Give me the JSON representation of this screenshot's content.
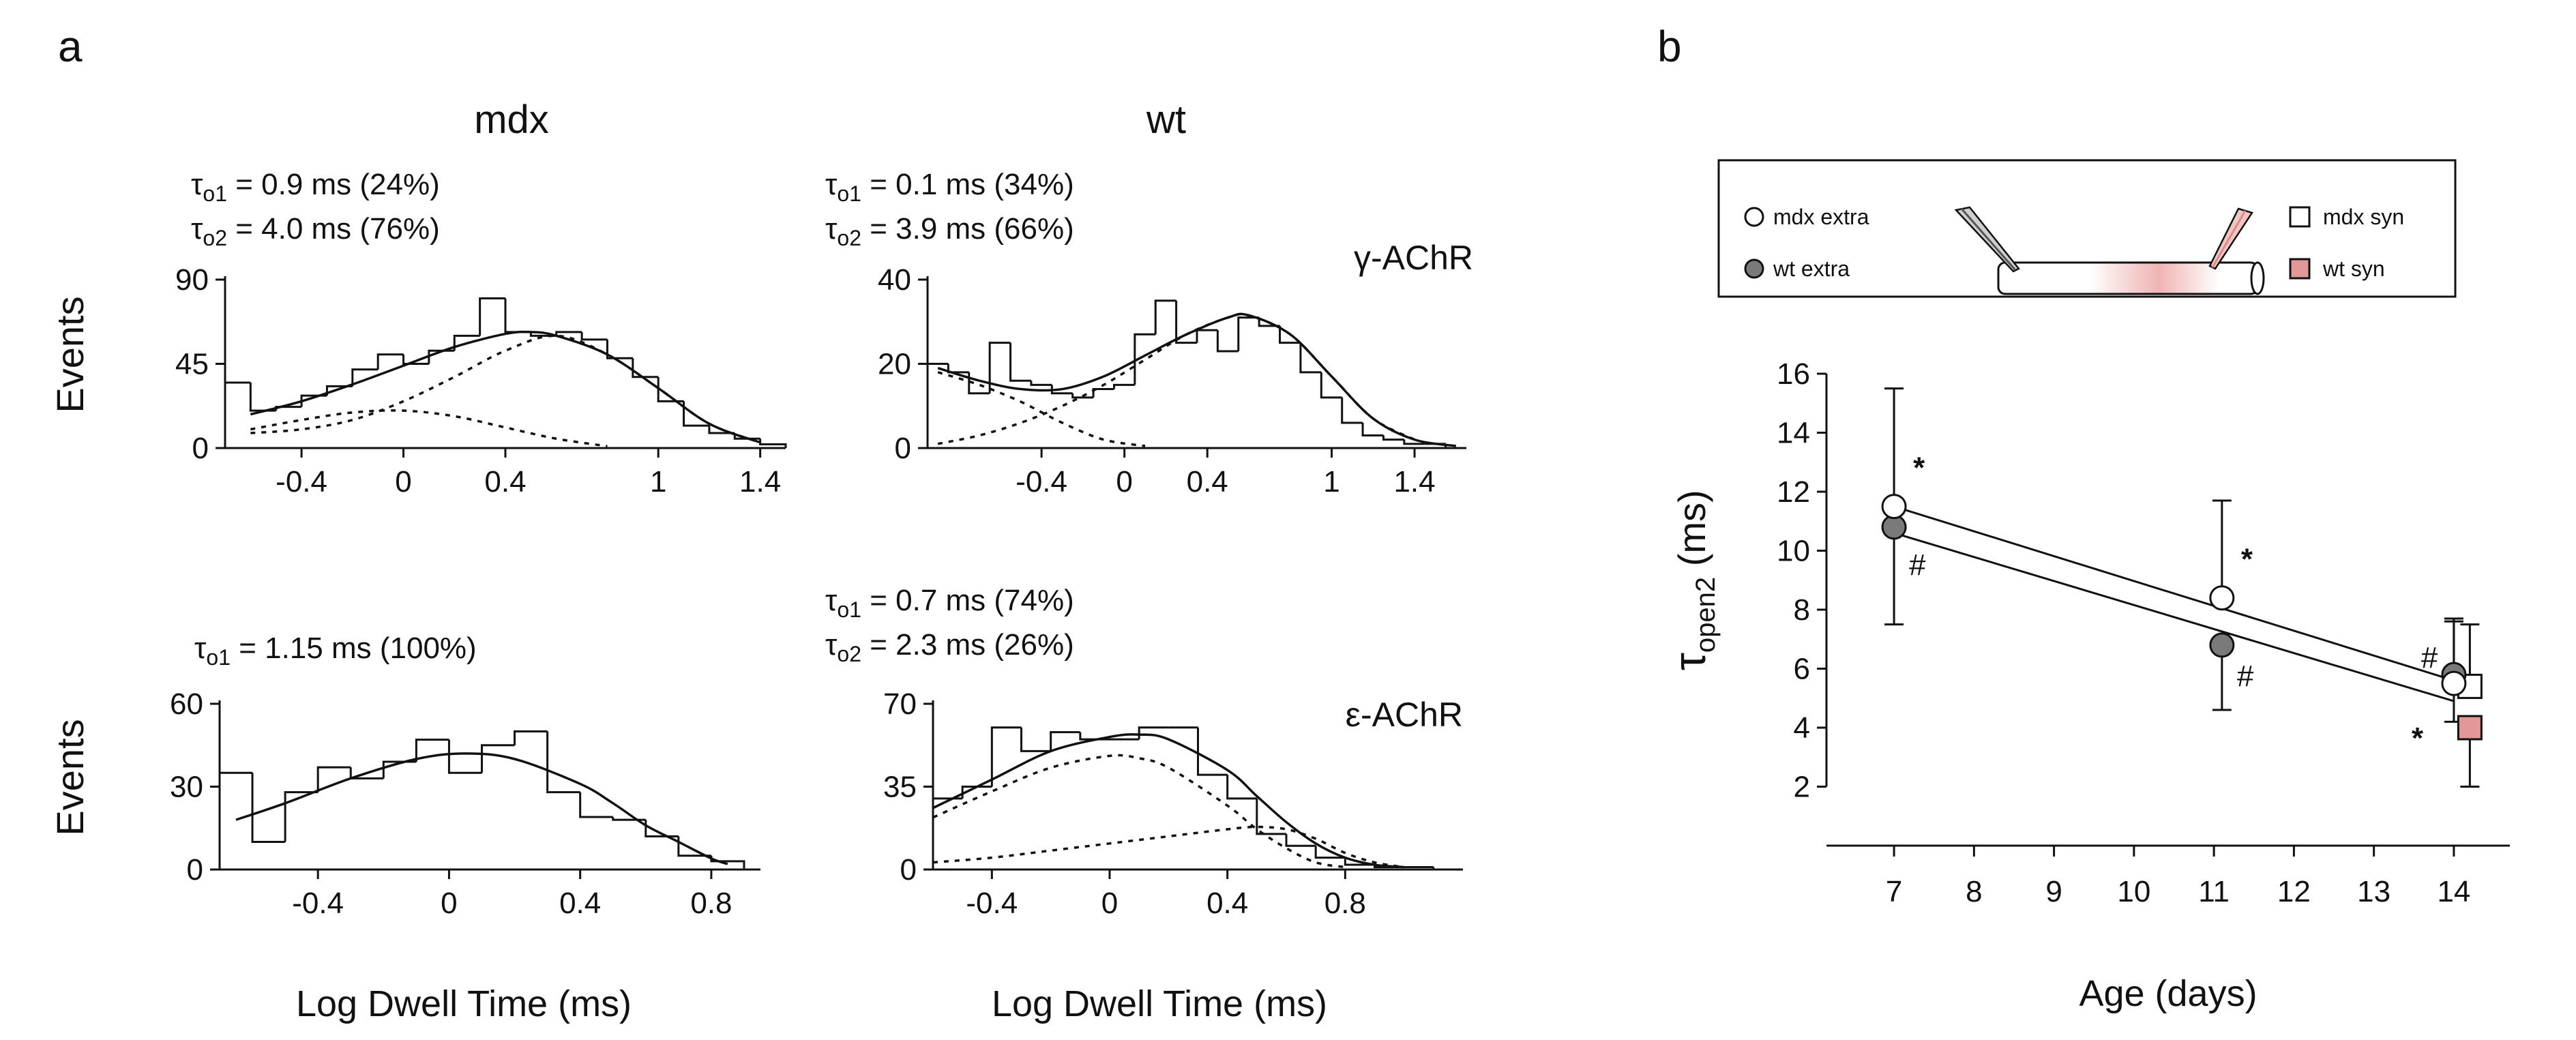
{
  "panel_labels": {
    "a": "a",
    "b": "b"
  },
  "column_titles": {
    "mdx": "mdx",
    "wt": "wt"
  },
  "receptor_labels": {
    "gamma": "γ-AChR",
    "epsilon": "ε-AChR"
  },
  "shared_labels": {
    "events": "Events",
    "log_dwell": "Log Dwell Time (ms)"
  },
  "chart_data": [
    {
      "id": "mdx-gamma",
      "type": "bar",
      "title": "mdx γ-AChR",
      "tau_lines": [
        {
          "sym": "τ",
          "sub": "o1",
          "text": " = 0.9 ms (24%)"
        },
        {
          "sym": "τ",
          "sub": "o2",
          "text": " = 4.0 ms (76%)"
        }
      ],
      "xlabel": "Log Dwell Time (ms)",
      "ylabel": "Events",
      "xlim": [
        -0.7,
        1.5
      ],
      "ylim": [
        0,
        90
      ],
      "xticks": [
        -0.4,
        0,
        0.4,
        1,
        1.4
      ],
      "xtick_labels": [
        "-0.4",
        "0",
        "0.4",
        "1",
        "1.4"
      ],
      "yticks": [
        0,
        45,
        90
      ],
      "ytick_labels": [
        "0",
        "45",
        "90"
      ],
      "bin_edges": [
        -0.7,
        -0.6,
        -0.5,
        -0.4,
        -0.3,
        -0.2,
        -0.1,
        0,
        0.1,
        0.2,
        0.3,
        0.4,
        0.5,
        0.6,
        0.7,
        0.8,
        0.9,
        1.0,
        1.1,
        1.2,
        1.3,
        1.4,
        1.5
      ],
      "counts": [
        35,
        20,
        22,
        28,
        33,
        42,
        50,
        45,
        52,
        60,
        80,
        62,
        60,
        62,
        58,
        48,
        38,
        25,
        12,
        8,
        5,
        2
      ],
      "fits": [
        {
          "name": "sum",
          "style": "solid",
          "points": [
            [
              -0.6,
              18
            ],
            [
              -0.4,
              25
            ],
            [
              -0.2,
              34
            ],
            [
              0,
              44
            ],
            [
              0.2,
              54
            ],
            [
              0.4,
              61
            ],
            [
              0.5,
              62
            ],
            [
              0.6,
              60
            ],
            [
              0.8,
              50
            ],
            [
              1,
              32
            ],
            [
              1.2,
              13
            ],
            [
              1.4,
              3
            ]
          ]
        },
        {
          "name": "component 1 (τo1)",
          "style": "dotted",
          "points": [
            [
              -0.6,
              10
            ],
            [
              -0.4,
              15
            ],
            [
              -0.2,
              19
            ],
            [
              0,
              20
            ],
            [
              0.2,
              17
            ],
            [
              0.4,
              11
            ],
            [
              0.6,
              5
            ],
            [
              0.8,
              1
            ]
          ]
        },
        {
          "name": "component 2 (τo2)",
          "style": "dotted",
          "points": [
            [
              -0.6,
              8
            ],
            [
              -0.4,
              10
            ],
            [
              -0.2,
              15
            ],
            [
              0,
              25
            ],
            [
              0.2,
              38
            ],
            [
              0.4,
              52
            ],
            [
              0.6,
              60
            ],
            [
              0.8,
              50
            ],
            [
              1,
              32
            ],
            [
              1.2,
              13
            ],
            [
              1.4,
              3
            ]
          ]
        }
      ]
    },
    {
      "id": "wt-gamma",
      "type": "bar",
      "title": "wt γ-AChR",
      "tau_lines": [
        {
          "sym": "τ",
          "sub": "o1",
          "text": " = 0.1 ms (34%)"
        },
        {
          "sym": "τ",
          "sub": "o2",
          "text": " = 3.9 ms (66%)"
        }
      ],
      "xlabel": "Log Dwell Time (ms)",
      "ylabel": "Events",
      "xlim": [
        -0.95,
        1.65
      ],
      "ylim": [
        0,
        40
      ],
      "xticks": [
        -0.4,
        0,
        0.4,
        1,
        1.4
      ],
      "xtick_labels": [
        "-0.4",
        "0",
        "0.4",
        "1",
        "1.4"
      ],
      "yticks": [
        0,
        20,
        40
      ],
      "ytick_labels": [
        "0",
        "20",
        "40"
      ],
      "bin_edges": [
        -0.95,
        -0.85,
        -0.75,
        -0.65,
        -0.55,
        -0.45,
        -0.35,
        -0.25,
        -0.15,
        -0.05,
        0.05,
        0.15,
        0.25,
        0.35,
        0.45,
        0.55,
        0.65,
        0.75,
        0.85,
        0.95,
        1.05,
        1.15,
        1.25,
        1.35,
        1.45,
        1.55,
        1.65
      ],
      "counts": [
        20,
        18,
        13,
        25,
        16,
        15,
        13,
        12,
        14,
        15,
        27,
        35,
        25,
        28,
        23,
        31,
        29,
        25,
        18,
        12,
        6,
        3,
        2,
        1,
        1,
        0
      ],
      "fits": [
        {
          "name": "sum",
          "style": "solid",
          "points": [
            [
              -0.9,
              19
            ],
            [
              -0.7,
              16
            ],
            [
              -0.5,
              14
            ],
            [
              -0.3,
              14
            ],
            [
              -0.1,
              17
            ],
            [
              0.1,
              22
            ],
            [
              0.3,
              27
            ],
            [
              0.5,
              31
            ],
            [
              0.6,
              31.5
            ],
            [
              0.8,
              27
            ],
            [
              1,
              17
            ],
            [
              1.2,
              7
            ],
            [
              1.4,
              2
            ],
            [
              1.6,
              0.5
            ]
          ]
        },
        {
          "name": "component 1 (τo1)",
          "style": "dotted",
          "points": [
            [
              -0.9,
              18
            ],
            [
              -0.7,
              15
            ],
            [
              -0.5,
              11
            ],
            [
              -0.3,
              6
            ],
            [
              -0.1,
              2
            ],
            [
              0.1,
              0.5
            ]
          ]
        },
        {
          "name": "component 2 (τo2)",
          "style": "dotted",
          "points": [
            [
              -0.9,
              1
            ],
            [
              -0.7,
              3
            ],
            [
              -0.5,
              6
            ],
            [
              -0.3,
              10
            ],
            [
              -0.1,
              15
            ],
            [
              0.1,
              21
            ],
            [
              0.3,
              27
            ],
            [
              0.5,
              31
            ],
            [
              0.6,
              31.5
            ],
            [
              0.8,
              27
            ],
            [
              1,
              17
            ],
            [
              1.2,
              7
            ],
            [
              1.4,
              2
            ]
          ]
        }
      ]
    },
    {
      "id": "mdx-epsilon",
      "type": "bar",
      "title": "mdx ε-AChR",
      "tau_lines": [
        {
          "sym": "τ",
          "sub": "o1",
          "text": " = 1.15 ms (100%)"
        }
      ],
      "xlabel": "Log Dwell Time (ms)",
      "ylabel": "Events",
      "xlim": [
        -0.7,
        0.95
      ],
      "ylim": [
        0,
        60
      ],
      "xticks": [
        -0.4,
        0,
        0.4,
        0.8
      ],
      "xtick_labels": [
        "-0.4",
        "0",
        "0.4",
        "0.8"
      ],
      "yticks": [
        0,
        30,
        60
      ],
      "ytick_labels": [
        "0",
        "30",
        "60"
      ],
      "bin_edges": [
        -0.7,
        -0.6,
        -0.5,
        -0.4,
        -0.3,
        -0.2,
        -0.1,
        0,
        0.1,
        0.2,
        0.3,
        0.4,
        0.5,
        0.6,
        0.7,
        0.8,
        0.9
      ],
      "counts": [
        35,
        10,
        28,
        37,
        33,
        39,
        47,
        35,
        45,
        50,
        28,
        19,
        18,
        12,
        5,
        3
      ],
      "fits": [
        {
          "name": "sum",
          "style": "solid",
          "points": [
            [
              -0.65,
              18
            ],
            [
              -0.5,
              24
            ],
            [
              -0.3,
              33
            ],
            [
              -0.1,
              40
            ],
            [
              0.05,
              42
            ],
            [
              0.2,
              40
            ],
            [
              0.4,
              31
            ],
            [
              0.5,
              24
            ],
            [
              0.6,
              16
            ],
            [
              0.7,
              10
            ],
            [
              0.8,
              4
            ],
            [
              0.85,
              2
            ]
          ]
        }
      ]
    },
    {
      "id": "wt-epsilon",
      "type": "bar",
      "title": "wt ε-AChR",
      "tau_lines": [
        {
          "sym": "τ",
          "sub": "o1",
          "text": " = 0.7 ms (74%)"
        },
        {
          "sym": "τ",
          "sub": "o2",
          "text": " = 2.3 ms (26%)"
        }
      ],
      "xlabel": "Log Dwell Time (ms)",
      "ylabel": "Events",
      "xlim": [
        -0.6,
        1.2
      ],
      "ylim": [
        0,
        70
      ],
      "xticks": [
        -0.4,
        0,
        0.4,
        0.8
      ],
      "xtick_labels": [
        "-0.4",
        "0",
        "0.4",
        "0.8"
      ],
      "yticks": [
        0,
        35,
        70
      ],
      "ytick_labels": [
        "0",
        "35",
        "70"
      ],
      "bin_edges": [
        -0.6,
        -0.5,
        -0.4,
        -0.3,
        -0.2,
        -0.1,
        0,
        0.1,
        0.2,
        0.3,
        0.4,
        0.5,
        0.6,
        0.7,
        0.8,
        0.9,
        1.0,
        1.1,
        1.2
      ],
      "counts": [
        30,
        35,
        60,
        50,
        58,
        55,
        55,
        60,
        60,
        40,
        30,
        15,
        10,
        5,
        2,
        1,
        1,
        0
      ],
      "fits": [
        {
          "name": "sum",
          "style": "solid",
          "points": [
            [
              -0.6,
              26
            ],
            [
              -0.4,
              38
            ],
            [
              -0.2,
              50
            ],
            [
              0,
              56
            ],
            [
              0.1,
              57
            ],
            [
              0.2,
              55
            ],
            [
              0.4,
              42
            ],
            [
              0.5,
              31
            ],
            [
              0.6,
              20
            ],
            [
              0.7,
              11
            ],
            [
              0.8,
              5
            ],
            [
              0.9,
              2
            ],
            [
              1,
              1
            ]
          ]
        },
        {
          "name": "component 1 (τo1)",
          "style": "dotted",
          "points": [
            [
              -0.6,
              22
            ],
            [
              -0.4,
              33
            ],
            [
              -0.2,
              43
            ],
            [
              0,
              48
            ],
            [
              0.1,
              47
            ],
            [
              0.2,
              43
            ],
            [
              0.4,
              27
            ],
            [
              0.5,
              17
            ],
            [
              0.6,
              9
            ],
            [
              0.7,
              3
            ],
            [
              0.8,
              1
            ]
          ]
        },
        {
          "name": "component 2 (τo2)",
          "style": "dotted",
          "points": [
            [
              -0.6,
              3
            ],
            [
              -0.4,
              5
            ],
            [
              -0.2,
              8
            ],
            [
              0,
              11
            ],
            [
              0.2,
              14
            ],
            [
              0.4,
              17
            ],
            [
              0.5,
              18
            ],
            [
              0.6,
              17
            ],
            [
              0.7,
              13
            ],
            [
              0.8,
              7
            ],
            [
              0.9,
              3
            ],
            [
              1,
              1
            ]
          ]
        }
      ]
    },
    {
      "id": "age-tau",
      "type": "scatter",
      "title": "",
      "xlabel": "Age (days)",
      "ylabel": {
        "sym": "τ",
        "sub": "open2",
        "unit": " (ms)"
      },
      "xlim": [
        6.3,
        14.7
      ],
      "ylim": [
        0,
        16
      ],
      "xticks": [
        7,
        8,
        9,
        10,
        11,
        12,
        13,
        14
      ],
      "xtick_labels": [
        "7",
        "8",
        "9",
        "10",
        "11",
        "12",
        "13",
        "14"
      ],
      "yticks": [
        2,
        4,
        6,
        8,
        10,
        12,
        14,
        16
      ],
      "ytick_labels": [
        "2",
        "4",
        "6",
        "8",
        "10",
        "12",
        "14",
        "16"
      ],
      "legend": [
        {
          "label": "mdx extra",
          "marker": "circle",
          "color": "#ffffff"
        },
        {
          "label": "wt extra",
          "marker": "circle",
          "color": "#7a7a7a"
        },
        {
          "label": "mdx syn",
          "marker": "square",
          "color": "#ffffff"
        },
        {
          "label": "wt syn",
          "marker": "square",
          "color": "#e29898"
        }
      ],
      "series": [
        {
          "name": "mdx extra",
          "marker": "circle",
          "color": "#ffffff",
          "points": [
            {
              "x": 7,
              "y": 11.5,
              "err_low": 11.5,
              "err_high": 15.5,
              "annot": "*"
            },
            {
              "x": 11.1,
              "y": 8.4,
              "err_low": 8.4,
              "err_high": 11.7,
              "annot": "*"
            },
            {
              "x": 14,
              "y": 5.5,
              "err_low": 4.2,
              "err_high": 7.6,
              "annot": "*"
            }
          ]
        },
        {
          "name": "wt extra",
          "marker": "circle",
          "color": "#7a7a7a",
          "points": [
            {
              "x": 7,
              "y": 10.8,
              "err_low": 7.5,
              "err_high": 10.8,
              "annot": "#"
            },
            {
              "x": 11.1,
              "y": 6.8,
              "err_low": 4.6,
              "err_high": 6.8,
              "annot": "#"
            },
            {
              "x": 14,
              "y": 5.8,
              "err_low": 5.8,
              "err_high": 7.7,
              "annot": "#"
            }
          ]
        },
        {
          "name": "mdx syn",
          "marker": "square",
          "color": "#ffffff",
          "points": [
            {
              "x": 14.2,
              "y": 5.4,
              "err_low": 5.4,
              "err_high": 7.5
            }
          ]
        },
        {
          "name": "wt syn",
          "marker": "square",
          "color": "#e29898",
          "points": [
            {
              "x": 14.2,
              "y": 4.0,
              "err_low": 2.0,
              "err_high": 4.0
            }
          ]
        }
      ],
      "regression_lines": [
        {
          "name": "mdx extra fit",
          "from": [
            7,
            11.5
          ],
          "to": [
            14,
            5.6
          ]
        },
        {
          "name": "wt extra fit",
          "from": [
            7,
            10.6
          ],
          "to": [
            14,
            4.9
          ]
        }
      ]
    }
  ]
}
